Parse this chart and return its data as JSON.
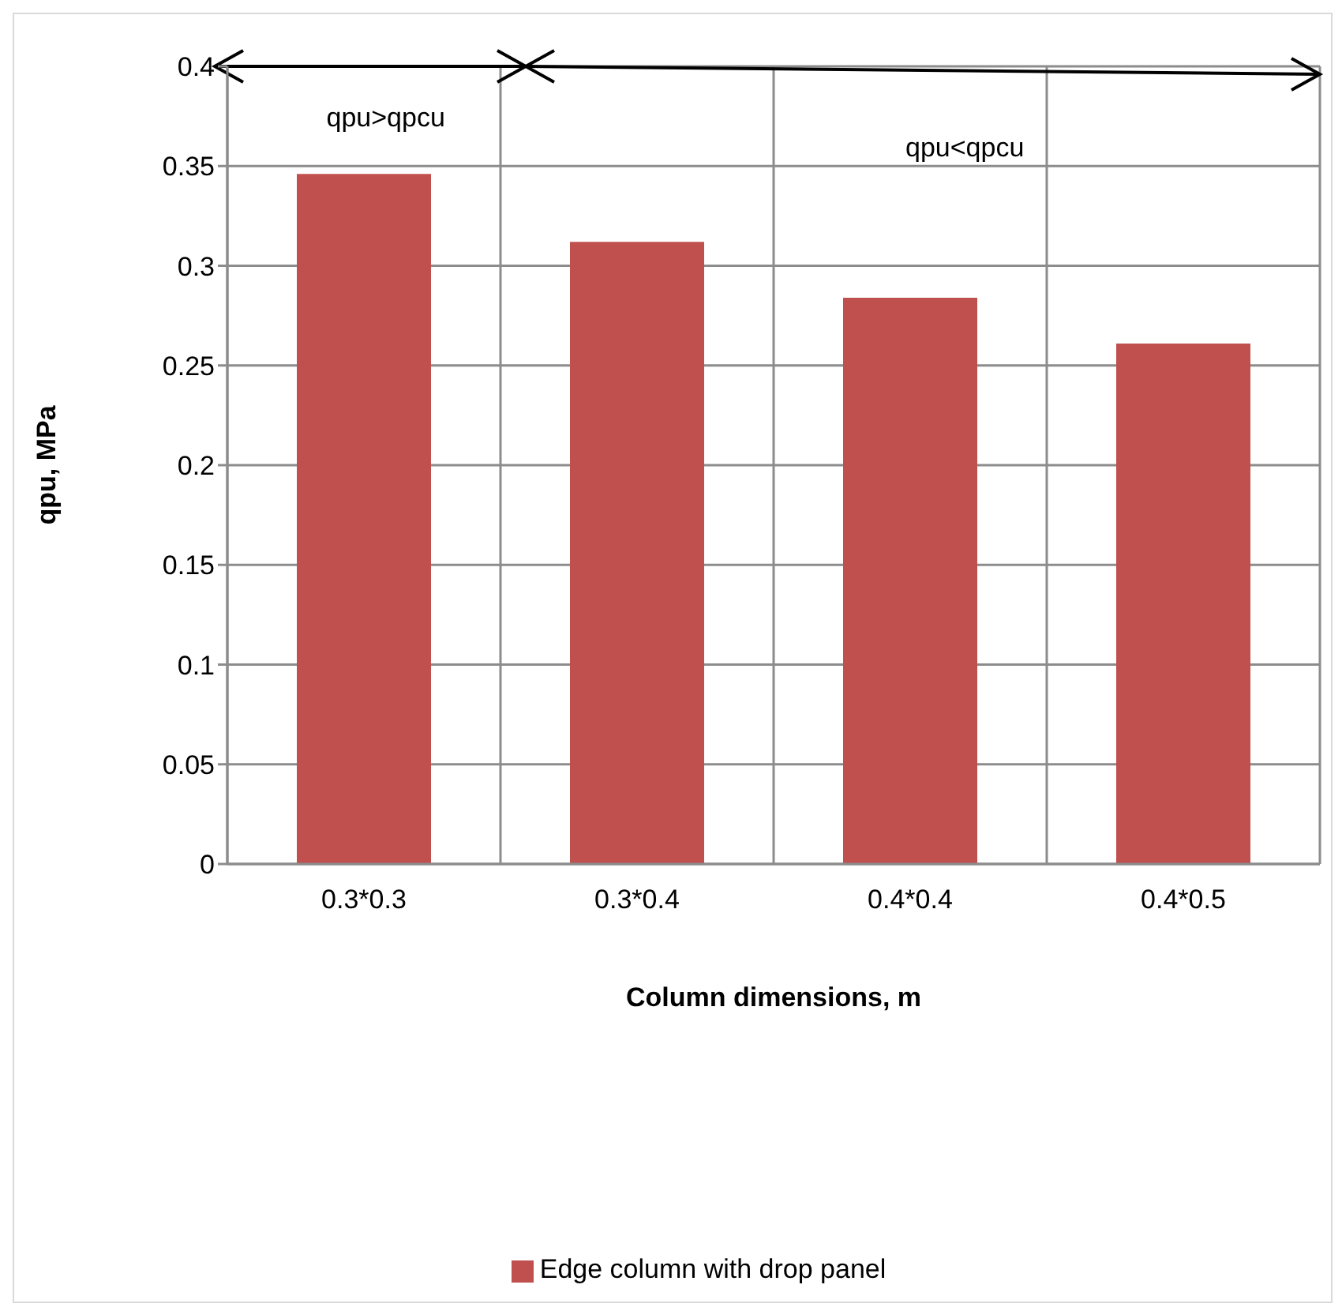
{
  "chart_data": {
    "type": "bar",
    "categories": [
      "0.3*0.3",
      "0.3*0.4",
      "0.4*0.4",
      "0.4*0.5"
    ],
    "series": [
      {
        "name": "Edge column with drop panel",
        "color": "#c0504d",
        "values": [
          0.346,
          0.312,
          0.284,
          0.261
        ]
      }
    ],
    "xlabel": "Column dimensions, m",
    "ylabel": "qpu, MPa",
    "ylim": [
      0,
      0.4
    ],
    "yticks": [
      0,
      0.05,
      0.1,
      0.15,
      0.2,
      0.25,
      0.3,
      0.35,
      0.4
    ],
    "annotations": [
      "qpu>qpcu",
      "qpu<qpcu"
    ],
    "grid": true,
    "legend": "bottom"
  }
}
